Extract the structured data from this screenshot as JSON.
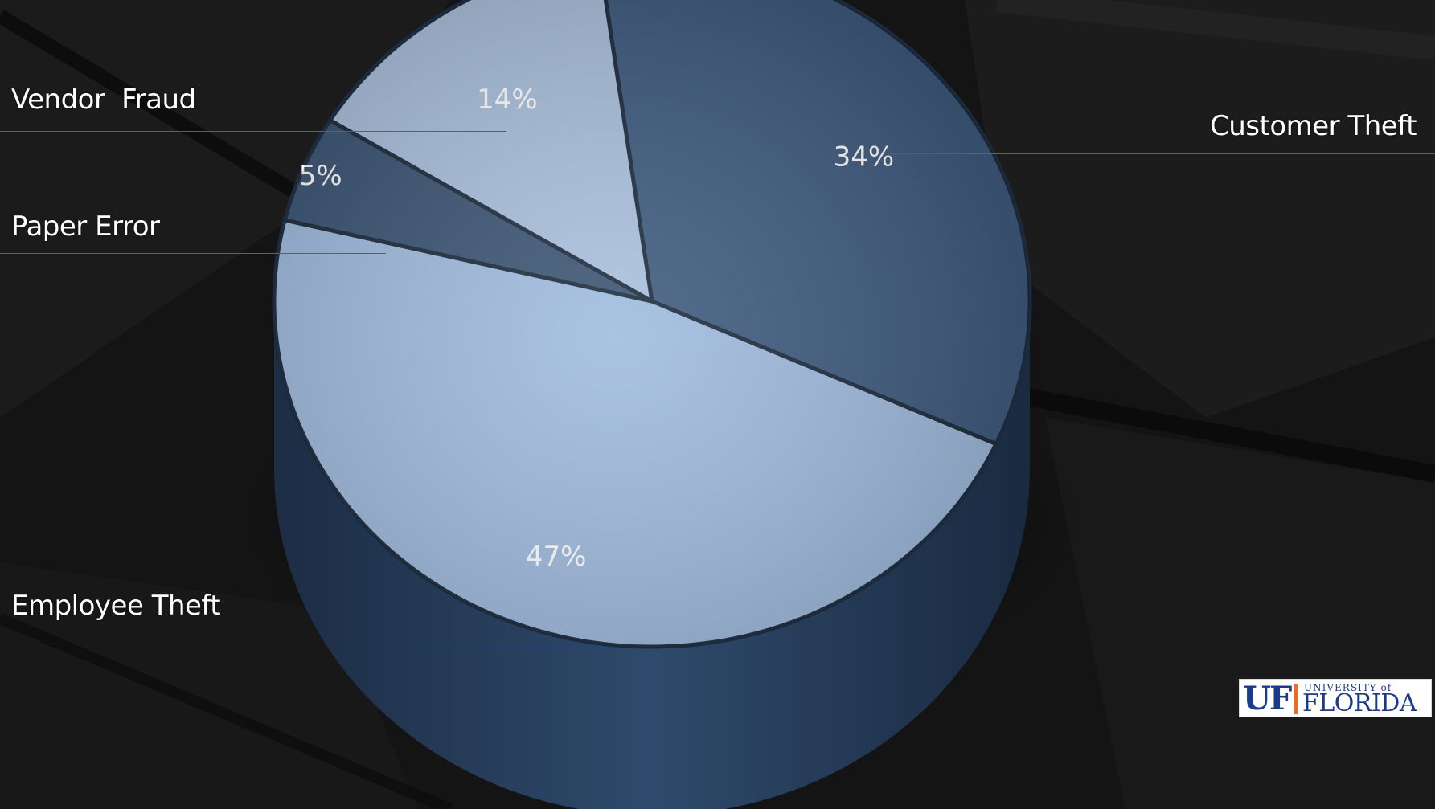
{
  "chart_data": {
    "type": "pie",
    "title": "",
    "slices": [
      {
        "label": "Customer Theft",
        "value": 34,
        "value_label": "34%",
        "color": "#3d5a7e"
      },
      {
        "label": "Employee Theft",
        "value": 47,
        "value_label": "47%",
        "color": "#9fbbde"
      },
      {
        "label": "Paper Error",
        "value": 5,
        "value_label": "5%",
        "color": "#3a5473"
      },
      {
        "label": "Vendor  Fraud",
        "value": 14,
        "value_label": "14%",
        "color": "#a9c0dd"
      }
    ],
    "legend_placement": "callout labels outside the pie with leader lines"
  },
  "colors": {
    "background": "#121212",
    "leader_line": "#2f6aa0",
    "cylinder_side": "#2d4563"
  },
  "logo": {
    "uf": "UF",
    "university_of": "UNIVERSITY of",
    "florida": "FLORIDA"
  }
}
